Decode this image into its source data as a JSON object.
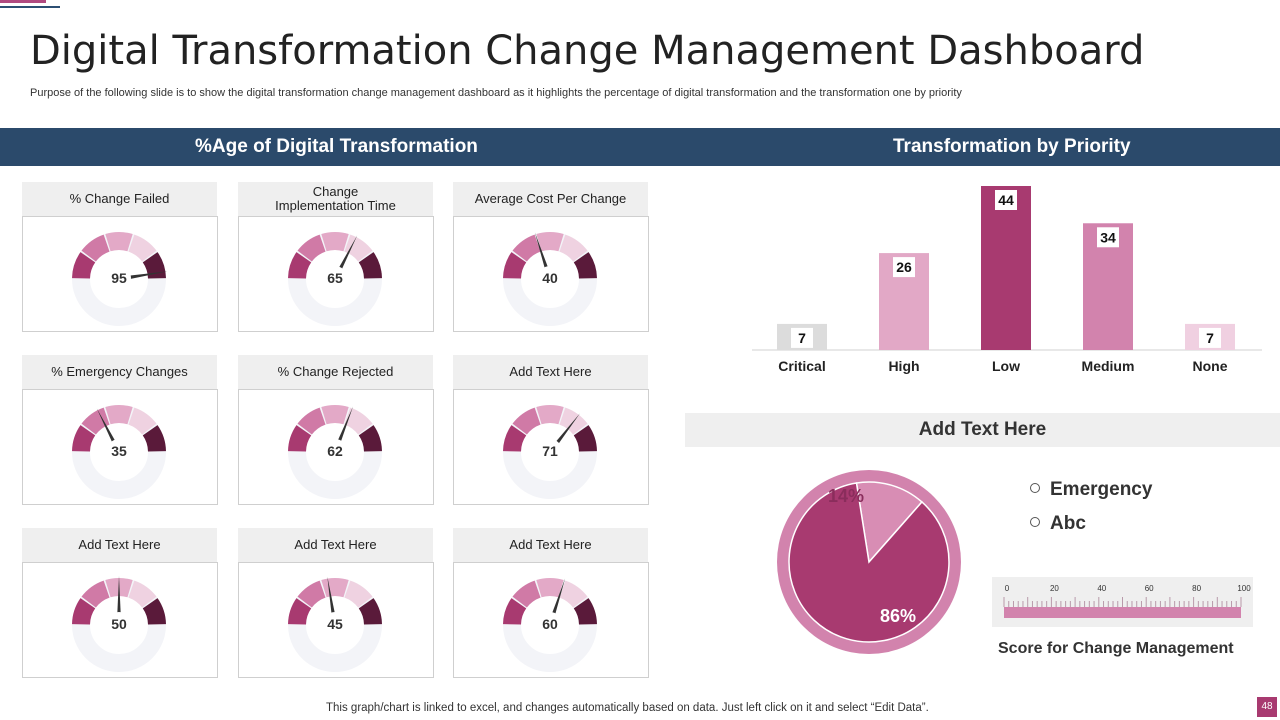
{
  "page": {
    "title": "Digital Transformation Change Management Dashboard",
    "subtitle": "Purpose of the following slide is to show the digital transformation change management dashboard as it highlights the percentage of digital transformation and the transformation one by priority",
    "footer": "This graph/chart is linked to excel,  and changes automatically based on data. Just left click on it and select “Edit Data”.",
    "page_number": "48"
  },
  "colors": {
    "banner": "#2b4a6b",
    "gauge_segments": [
      "#a83a70",
      "#d07aa6",
      "#e3a9c7",
      "#efd2e1",
      "#5a1a3a"
    ],
    "gauge_track": "#f3f4f8",
    "needle": "#333333",
    "bar_colors": [
      "#dcdcdc",
      "#e2a8c6",
      "#a83a70",
      "#d283ad",
      "#f0d0e1"
    ],
    "pie_main": "#a83a70",
    "pie_slice": "#d88db4",
    "pie_ring": "#d283ad"
  },
  "left_panel": {
    "title": "%Age of Digital Transformation",
    "gauges": [
      {
        "label": "% Change Failed",
        "value": 95
      },
      {
        "label": "Change Implementation Time",
        "value": 65
      },
      {
        "label": "Average Cost Per Change",
        "value": 40
      },
      {
        "label": "% Emergency Changes",
        "value": 35
      },
      {
        "label": "% Change Rejected",
        "value": 62
      },
      {
        "label": "Add Text Here",
        "value": 71
      },
      {
        "label": "Add Text Here",
        "value": 50
      },
      {
        "label": "Add Text Here",
        "value": 45
      },
      {
        "label": "Add Text Here",
        "value": 60
      }
    ]
  },
  "right_panel": {
    "title": "Transformation by Priority",
    "section_title": "Add Text Here",
    "legend": [
      "Emergency",
      "Abc"
    ],
    "score_title": "Score for Change Management",
    "scale_ticks": [
      "0",
      "20",
      "40",
      "60",
      "80",
      "100"
    ]
  },
  "chart_data": [
    {
      "type": "bar",
      "title": "Transformation by Priority",
      "categories": [
        "Critical",
        "High",
        "Low",
        "Medium",
        "None"
      ],
      "values": [
        7,
        26,
        44,
        34,
        7
      ],
      "ylim": [
        0,
        44
      ]
    },
    {
      "type": "pie",
      "title": "Add Text Here",
      "labels": [
        "Emergency",
        "Abc"
      ],
      "values": [
        14,
        86
      ],
      "value_labels": [
        "14%",
        "86%"
      ]
    }
  ]
}
